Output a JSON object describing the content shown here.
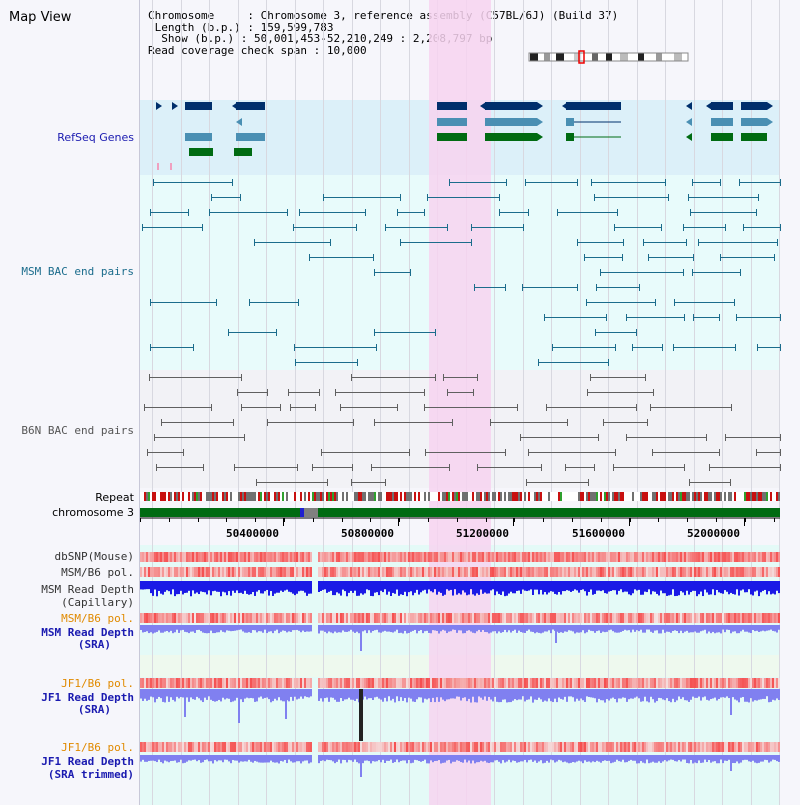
{
  "app": {
    "view_title": "Map View"
  },
  "header": {
    "chromosome_key": "Chromosome",
    "chromosome_val": "Chromosome 3, reference assembly (C57BL/6J) (Build 37)",
    "length_key": "Length (b.p.)",
    "length_val": "159,599,783",
    "show_key": "Show (b.p.)",
    "show_val": "50,001,453-52,210,249 : 2,208,797 bp",
    "coverage_key": "Read coverage check span",
    "coverage_val": "10,000"
  },
  "tracks": {
    "refseq": "RefSeq Genes",
    "msm_bac": "MSM BAC end pairs",
    "b6n_bac": "B6N BAC end pairs",
    "repeat": "Repeat",
    "chromosome": "chromosome 3",
    "dbsnp": "dbSNP(Mouse)",
    "msm_pol": "MSM/B6 pol.",
    "msm_depth_cap_1": "MSM Read Depth",
    "msm_depth_cap_2": "(Capillary)",
    "msm_pol_2": "MSM/B6 pol.",
    "msm_depth_sra_1": "MSM Read Depth",
    "msm_depth_sra_2": "(SRA)",
    "jf1_pol": "JF1/B6 pol.",
    "jf1_depth_sra_1": "JF1 Read Depth",
    "jf1_depth_sra_2": "(SRA)",
    "jf1_pol_2": "JF1/B6 pol.",
    "jf1_depth_trim_1": "JF1 Read Depth",
    "jf1_depth_trim_2": "(SRA trimmed)"
  },
  "axis": {
    "ticks": [
      "50400000",
      "50800000",
      "51200000",
      "51600000",
      "52000000"
    ]
  },
  "colors": {
    "highlight": "#f7d3f0",
    "refseq_bg": "#dcf0f9",
    "msm_bg": "#e8fbfb",
    "b6n_bg": "#f2f2f6",
    "gene_navy": "#002f6c",
    "gene_teal": "#4a8fb3",
    "gene_green": "#006b12",
    "msm_line": "#1b6c8c",
    "b6n_line": "#606060",
    "depth_blue": "#1a1ae6",
    "depth_light": "#8080f0",
    "snp_red": "#f05050",
    "chrom_green": "#006b12"
  }
}
